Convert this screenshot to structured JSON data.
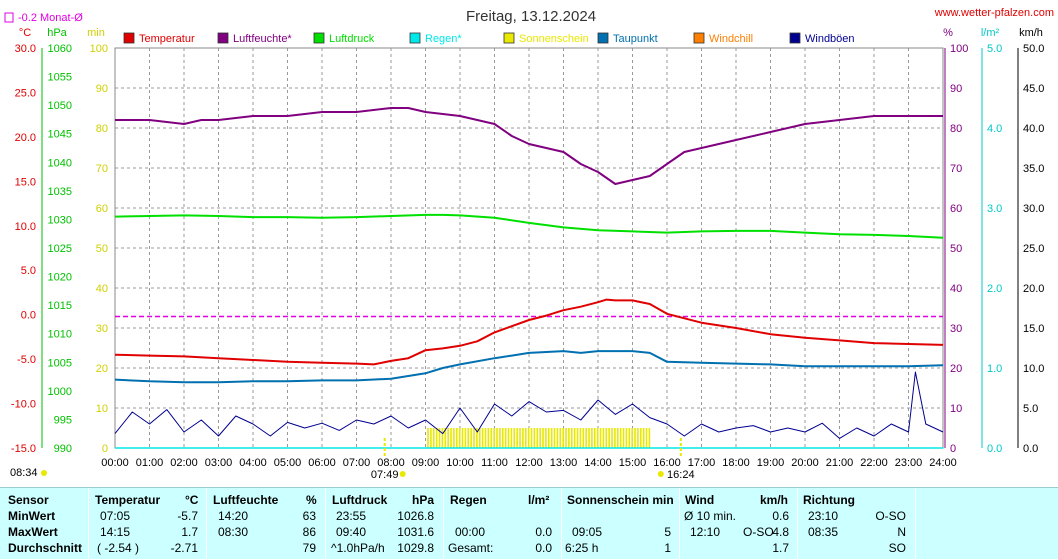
{
  "header": {
    "title": "Freitag, 13.12.2024",
    "site": "www.wetter-pfalzen.com",
    "monthly_avg": "-0.2 Monat-Ø"
  },
  "legend": [
    {
      "label": "Temperatur",
      "color": "#e00000"
    },
    {
      "label": "Luftfeuchte*",
      "color": "#800080"
    },
    {
      "label": "Luftdruck",
      "color": "#00e000"
    },
    {
      "label": "Regen*",
      "color": "#00e8e8"
    },
    {
      "label": "Sonnenschein",
      "color": "#e8e800"
    },
    {
      "label": "Taupunkt",
      "color": "#0070b0"
    },
    {
      "label": "Windchill",
      "color": "#ff8000"
    },
    {
      "label": "Windböen",
      "color": "#000090"
    }
  ],
  "axes": {
    "temp": {
      "unit": "°C",
      "ticks": [
        "30.0",
        "25.0",
        "20.0",
        "15.0",
        "10.0",
        "5.0",
        "0.0",
        "-5.0",
        "-10.0",
        "-15.0"
      ],
      "range": [
        -15,
        30
      ],
      "color": "#e00000"
    },
    "pressure": {
      "unit": "hPa",
      "ticks": [
        "1060",
        "1055",
        "1050",
        "1045",
        "1040",
        "1035",
        "1030",
        "1025",
        "1020",
        "1015",
        "1010",
        "1005",
        "1000",
        "995",
        "990"
      ],
      "range": [
        990,
        1060
      ],
      "color": "#00c000"
    },
    "min": {
      "unit": "min",
      "ticks": [
        "100",
        "90",
        "80",
        "70",
        "60",
        "50",
        "40",
        "30",
        "20",
        "10",
        "0"
      ],
      "range": [
        0,
        100
      ],
      "color": "#d0d000"
    },
    "humidity_right": {
      "unit": "%",
      "ticks": [
        "100",
        "90",
        "80",
        "70",
        "60",
        "50",
        "40",
        "30",
        "20",
        "10",
        "0"
      ],
      "range": [
        0,
        100
      ],
      "color": "#800080"
    },
    "rain": {
      "unit": "l/m²",
      "ticks": [
        "5.0",
        "4.0",
        "3.0",
        "2.0",
        "1.0",
        "0.0"
      ],
      "range": [
        0,
        5
      ],
      "color": "#00c8c8"
    },
    "wind": {
      "unit": "km/h",
      "ticks": [
        "50.0",
        "45.0",
        "40.0",
        "35.0",
        "30.0",
        "25.0",
        "20.0",
        "15.0",
        "10.0",
        "5.0",
        "0.0"
      ],
      "range": [
        0,
        50
      ],
      "color": "#000000"
    },
    "x_ticks": [
      "00:00",
      "01:00",
      "02:00",
      "03:00",
      "04:00",
      "05:00",
      "06:00",
      "07:00",
      "08:00",
      "09:00",
      "10:00",
      "11:00",
      "12:00",
      "13:00",
      "14:00",
      "15:00",
      "16:00",
      "17:00",
      "18:00",
      "19:00",
      "20:00",
      "21:00",
      "22:00",
      "23:00",
      "24:00"
    ],
    "now_label": "08:34",
    "sunrise": "07:49",
    "sunset": "16:24"
  },
  "chart_data": {
    "type": "line",
    "x_unit": "hours",
    "xlim": [
      0,
      24
    ],
    "grid": true,
    "legend_placement": "top",
    "monthly_avg_temp": -0.2,
    "series": [
      {
        "name": "Temperatur",
        "unit": "°C",
        "x": [
          0,
          1,
          2,
          3,
          4,
          5,
          6,
          7,
          7.5,
          8,
          8.5,
          9,
          9.5,
          10,
          10.5,
          11,
          11.5,
          12,
          12.5,
          13,
          13.5,
          14,
          14.25,
          14.5,
          15,
          15.5,
          16,
          17,
          18,
          19,
          20,
          21,
          22,
          23,
          24
        ],
        "values": [
          -4.5,
          -4.6,
          -4.7,
          -4.9,
          -5.1,
          -5.3,
          -5.4,
          -5.5,
          -5.6,
          -5.2,
          -4.9,
          -4.0,
          -3.8,
          -3.5,
          -3.0,
          -2.0,
          -1.3,
          -0.6,
          -0.1,
          0.5,
          0.9,
          1.4,
          1.7,
          1.6,
          1.6,
          1.2,
          0.1,
          -0.9,
          -1.5,
          -2.2,
          -2.6,
          -2.9,
          -3.2,
          -3.3,
          -3.4
        ]
      },
      {
        "name": "Luftfeuchte*",
        "unit": "%",
        "x": [
          0,
          1,
          2,
          2.5,
          3,
          4,
          5,
          6,
          7,
          8,
          8.5,
          9,
          10,
          11,
          11.5,
          12,
          13,
          13.5,
          14,
          14.5,
          15,
          15.5,
          16,
          16.5,
          17,
          18,
          19,
          20,
          21,
          22,
          23,
          24
        ],
        "values": [
          82,
          82,
          81,
          82,
          82,
          83,
          83,
          84,
          84,
          85,
          85,
          84,
          83,
          81,
          78,
          76,
          74,
          71,
          69,
          66,
          67,
          68,
          71,
          74,
          75,
          77,
          79,
          81,
          82,
          83,
          83,
          83
        ]
      },
      {
        "name": "Luftdruck",
        "unit": "hPa",
        "x": [
          0,
          1,
          2,
          3,
          4,
          5,
          6,
          7,
          8,
          9,
          9.5,
          10,
          11,
          12,
          13,
          14,
          15,
          16,
          17,
          18,
          19,
          20,
          21,
          22,
          23,
          24
        ],
        "values": [
          1030.5,
          1030.6,
          1030.7,
          1030.6,
          1030.4,
          1030.4,
          1030.3,
          1030.4,
          1030.6,
          1030.8,
          1030.8,
          1030.7,
          1030.3,
          1029.4,
          1028.6,
          1028.1,
          1027.9,
          1027.7,
          1027.9,
          1028.0,
          1028.0,
          1027.7,
          1027.4,
          1027.3,
          1027.1,
          1026.8
        ]
      },
      {
        "name": "Taupunkt",
        "unit": "°C",
        "x": [
          0,
          1,
          2,
          3,
          4,
          5,
          6,
          7,
          8,
          9,
          9.5,
          10,
          11,
          11.5,
          12,
          12.5,
          13,
          13.5,
          14,
          14.5,
          15,
          15.5,
          16,
          17,
          18,
          19,
          20,
          21,
          22,
          23,
          24
        ],
        "values": [
          -7.3,
          -7.5,
          -7.6,
          -7.6,
          -7.5,
          -7.5,
          -7.4,
          -7.4,
          -7.2,
          -6.6,
          -6.0,
          -5.6,
          -4.9,
          -4.6,
          -4.3,
          -4.2,
          -4.1,
          -4.3,
          -4.1,
          -4.1,
          -4.1,
          -4.3,
          -5.3,
          -5.4,
          -5.5,
          -5.6,
          -5.8,
          -5.8,
          -5.8,
          -5.8,
          -5.7
        ]
      },
      {
        "name": "Windböen",
        "unit": "km/h",
        "x": [
          0,
          0.5,
          1,
          1.5,
          2,
          2.5,
          3,
          3.5,
          4,
          4.5,
          5,
          5.5,
          6,
          6.5,
          7,
          7.5,
          8,
          8.5,
          9,
          9.5,
          10,
          10.5,
          11,
          11.5,
          12,
          12.5,
          13,
          13.5,
          14,
          14.5,
          15,
          15.5,
          16,
          16.5,
          17,
          17.5,
          18,
          18.5,
          19,
          19.5,
          20,
          20.5,
          21,
          21.5,
          22,
          22.5,
          23,
          23.2,
          23.5,
          24
        ],
        "values": [
          1.8,
          4.5,
          3,
          4.8,
          2,
          3.5,
          1.5,
          4,
          3,
          1.5,
          3.2,
          2.5,
          3.1,
          2.2,
          3.5,
          3,
          4,
          2.5,
          3.5,
          1.8,
          5,
          2,
          5.5,
          4,
          5.8,
          4.5,
          4.7,
          3.5,
          6,
          4.2,
          5.5,
          3.8,
          3,
          1.5,
          3,
          2,
          2.5,
          2.8,
          2,
          2.5,
          2,
          3.1,
          1.2,
          2.5,
          1.5,
          3,
          2,
          9.5,
          3,
          2
        ]
      },
      {
        "name": "Sonnenschein",
        "unit": "min",
        "x": [
          9.05,
          15.5
        ],
        "values": [
          5,
          5
        ]
      },
      {
        "name": "Regen*",
        "unit": "l/m²",
        "x": [
          0,
          24
        ],
        "values": [
          0,
          0
        ]
      }
    ]
  },
  "stats": {
    "headers": [
      {
        "label": "Sensor",
        "unit": ""
      },
      {
        "label": "Temperatur",
        "unit": "°C"
      },
      {
        "label": "Luftfeuchte",
        "unit": "%"
      },
      {
        "label": "Luftdruck",
        "unit": "hPa"
      },
      {
        "label": "Regen",
        "unit": "l/m²"
      },
      {
        "label": "Sonnenschein min",
        "unit": ""
      },
      {
        "label": "Wind",
        "unit": "km/h"
      },
      {
        "label": "Richtung",
        "unit": ""
      }
    ],
    "rows": [
      {
        "label": "MinWert",
        "temp_time": "07:05",
        "temp_val": "-5.7",
        "hum_time": "14:20",
        "hum_val": "63",
        "press_time": "23:55",
        "press_val": "1026.8",
        "rain_time": "",
        "rain_val": "",
        "sun_time": "",
        "sun_val": "",
        "wind_time": "Ø 10 min.",
        "wind_dir": "",
        "wind_val": "0.6",
        "dir_time": "23:10",
        "dir_val": "O-SO"
      },
      {
        "label": "MaxWert",
        "temp_time": "14:15",
        "temp_val": "1.7",
        "hum_time": "08:30",
        "hum_val": "86",
        "press_time": "09:40",
        "press_val": "1031.6",
        "rain_time": "00:00",
        "rain_val": "0.0",
        "sun_time": "09:05",
        "sun_val": "5",
        "wind_time": "12:10",
        "wind_dir": "O-SO",
        "wind_val": "4.8",
        "dir_time": "08:35",
        "dir_val": "N"
      },
      {
        "label": "Durchschnitt",
        "temp_time": "( -2.54 )",
        "temp_val": "-2.71",
        "hum_time": "",
        "hum_val": "79",
        "press_time": "^1.0hPa/h",
        "press_val": "1029.8",
        "rain_time": "Gesamt:",
        "rain_val": "0.0",
        "sun_time": "6:25 h",
        "sun_val": "1",
        "wind_time": "",
        "wind_dir": "",
        "wind_val": "1.7",
        "dir_time": "",
        "dir_val": "SO"
      }
    ]
  }
}
